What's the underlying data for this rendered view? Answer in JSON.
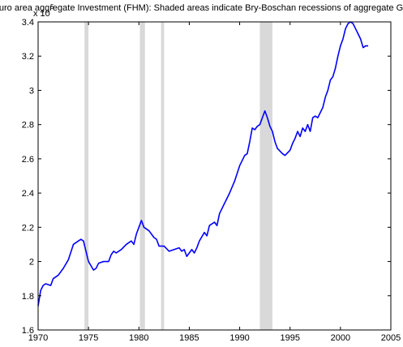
{
  "chart_data": {
    "type": "line",
    "title": "Euro area aggregate Investment (FHM): Shaded areas indicate Bry-Boschan recessions of aggregate GDP",
    "y_multiplier_label": "x 10",
    "y_multiplier_exponent": 5,
    "xlim": [
      1970,
      2005
    ],
    "xticks": [
      1970,
      1975,
      1980,
      1985,
      1990,
      1995,
      2000,
      2005
    ],
    "ylim": [
      1.6,
      3.4
    ],
    "yticks": [
      1.6,
      1.8,
      2,
      2.2,
      2.4,
      2.6,
      2.8,
      3,
      3.2,
      3.4
    ],
    "shaded_regions": [
      [
        1974.6,
        1975.0
      ],
      [
        1980.1,
        1980.6
      ],
      [
        1982.2,
        1982.5
      ],
      [
        1992.0,
        1993.25
      ]
    ],
    "shade_color": "#d9d9d9",
    "series": [
      {
        "color": "#0000ff",
        "x": [
          1970.0,
          1970.25,
          1970.5,
          1970.75,
          1971.25,
          1971.5,
          1972.0,
          1972.5,
          1973.0,
          1973.5,
          1974.0,
          1974.25,
          1974.5,
          1974.75,
          1975.0,
          1975.5,
          1975.75,
          1976.0,
          1976.5,
          1977.0,
          1977.25,
          1977.5,
          1977.75,
          1978.25,
          1978.75,
          1979.25,
          1979.5,
          1979.75,
          1980.0,
          1980.25,
          1980.5,
          1981.0,
          1981.5,
          1981.75,
          1982.0,
          1982.5,
          1983.0,
          1983.5,
          1984.0,
          1984.25,
          1984.5,
          1984.75,
          1985.0,
          1985.25,
          1985.5,
          1985.75,
          1986.0,
          1986.5,
          1986.75,
          1987.0,
          1987.5,
          1987.75,
          1988.0,
          1988.5,
          1989.0,
          1989.5,
          1990.0,
          1990.5,
          1990.75,
          1991.0,
          1991.25,
          1991.5,
          1991.75,
          1992.0,
          1992.25,
          1992.5,
          1992.75,
          1993.0,
          1993.25,
          1993.5,
          1993.75,
          1994.25,
          1994.5,
          1995.0,
          1995.25,
          1995.5,
          1995.75,
          1996.0,
          1996.25,
          1996.5,
          1996.75,
          1997.0,
          1997.25,
          1997.5,
          1997.75,
          1998.0,
          1998.25,
          1998.5,
          1998.75,
          1999.0,
          1999.25,
          1999.5,
          1999.75,
          2000.0,
          2000.25,
          2000.5,
          2000.75,
          2001.0,
          2001.25,
          2001.5,
          2001.75,
          2002.0,
          2002.25,
          2002.5,
          2002.75
        ],
        "values": [
          1.74,
          1.83,
          1.86,
          1.87,
          1.86,
          1.9,
          1.92,
          1.96,
          2.01,
          2.1,
          2.12,
          2.13,
          2.12,
          2.06,
          2.0,
          1.95,
          1.96,
          1.99,
          2.0,
          2.0,
          2.04,
          2.06,
          2.05,
          2.07,
          2.1,
          2.12,
          2.1,
          2.16,
          2.2,
          2.24,
          2.2,
          2.18,
          2.14,
          2.13,
          2.09,
          2.09,
          2.06,
          2.07,
          2.08,
          2.06,
          2.07,
          2.03,
          2.05,
          2.07,
          2.05,
          2.08,
          2.12,
          2.17,
          2.15,
          2.21,
          2.23,
          2.21,
          2.28,
          2.34,
          2.4,
          2.47,
          2.56,
          2.62,
          2.63,
          2.7,
          2.78,
          2.77,
          2.79,
          2.8,
          2.84,
          2.88,
          2.84,
          2.79,
          2.76,
          2.7,
          2.66,
          2.63,
          2.62,
          2.65,
          2.69,
          2.72,
          2.76,
          2.73,
          2.78,
          2.76,
          2.8,
          2.76,
          2.84,
          2.85,
          2.84,
          2.87,
          2.9,
          2.96,
          3.0,
          3.06,
          3.08,
          3.13,
          3.2,
          3.26,
          3.3,
          3.36,
          3.39,
          3.4,
          3.39,
          3.36,
          3.33,
          3.3,
          3.25,
          3.26,
          3.26
        ]
      }
    ]
  }
}
